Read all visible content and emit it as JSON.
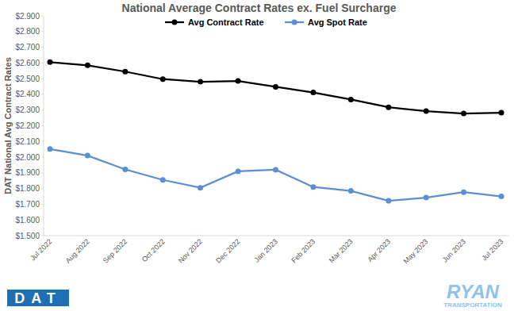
{
  "chart_data": {
    "type": "line",
    "title": "National Average Contract Rates ex. Fuel Surcharge",
    "y_label": "DAT National Avg Contract Rates",
    "annotations": [
      "DAT",
      "RYAN",
      "TRANSPORTATION"
    ],
    "categories": [
      "Jul 2022",
      "Aug 2022",
      "Sep 2022",
      "Oct 2022",
      "Nov 2022",
      "Dec 2022",
      "Jan 2023",
      "Feb 2023",
      "Mar 2023",
      "Apr 2023",
      "May 2023",
      "Jun 2023",
      "Jul 2023"
    ],
    "series": [
      {
        "name": "Avg Contract Rate",
        "color": "#000000",
        "marker": "circle",
        "values": [
          2.605,
          2.585,
          2.545,
          2.497,
          2.48,
          2.485,
          2.448,
          2.412,
          2.367,
          2.318,
          2.293,
          2.278,
          2.283
        ]
      },
      {
        "name": "Avg Spot Rate",
        "color": "#5b8fd4",
        "marker": "circle",
        "values": [
          2.052,
          2.01,
          1.922,
          1.855,
          1.805,
          1.91,
          1.92,
          1.81,
          1.785,
          1.722,
          1.742,
          1.777,
          1.75
        ]
      }
    ],
    "ylim": [
      1.5,
      2.9
    ],
    "yticks": [
      {
        "value": 1.5,
        "label": "$1.500"
      },
      {
        "value": 1.6,
        "label": "$1.600"
      },
      {
        "value": 1.7,
        "label": "$1.700"
      },
      {
        "value": 1.8,
        "label": "$1.800"
      },
      {
        "value": 1.9,
        "label": "$1.900"
      },
      {
        "value": 2.0,
        "label": "$2.000"
      },
      {
        "value": 2.1,
        "label": "$2.100"
      },
      {
        "value": 2.2,
        "label": "$2.200"
      },
      {
        "value": 2.3,
        "label": "$2.300"
      },
      {
        "value": 2.4,
        "label": "$2.400"
      },
      {
        "value": 2.5,
        "label": "$2.500"
      },
      {
        "value": 2.6,
        "label": "$2.600"
      },
      {
        "value": 2.7,
        "label": "$2.700"
      },
      {
        "value": 2.8,
        "label": "$2.800"
      },
      {
        "value": 2.9,
        "label": "$2.900"
      }
    ],
    "grid": false,
    "legend": "top"
  }
}
